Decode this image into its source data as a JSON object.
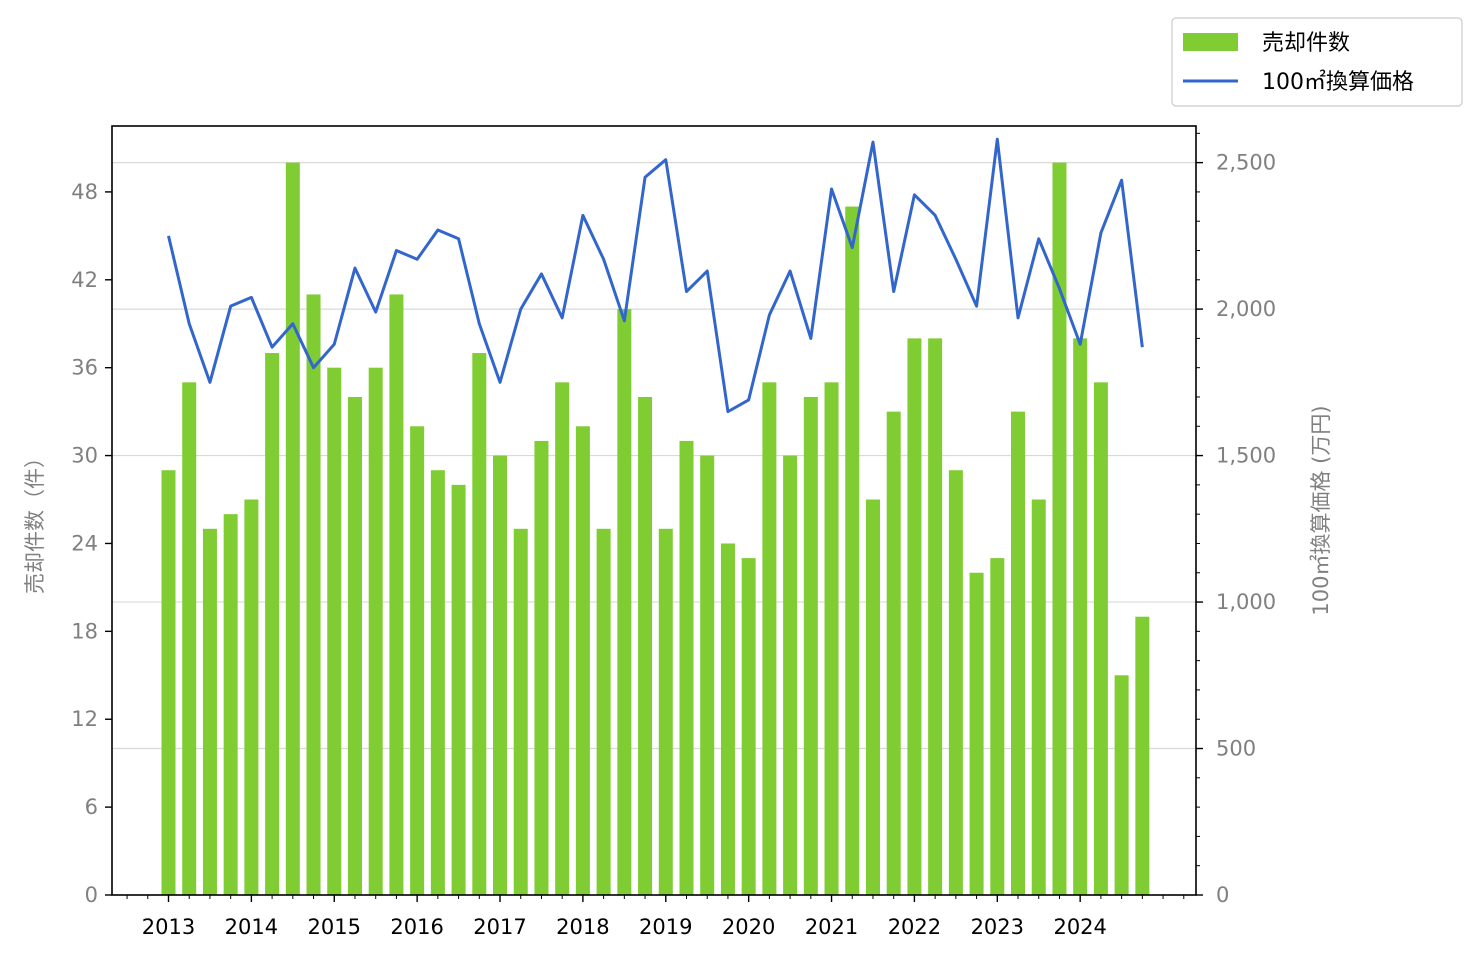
{
  "chart_data": {
    "type": "bar+line",
    "x_labels": [
      "2013",
      "2014",
      "2015",
      "2016",
      "2017",
      "2018",
      "2019",
      "2020",
      "2021",
      "2022",
      "2023",
      "2024"
    ],
    "quarters": [
      "2013Q1",
      "2013Q2",
      "2013Q3",
      "2013Q4",
      "2014Q1",
      "2014Q2",
      "2014Q3",
      "2014Q4",
      "2015Q1",
      "2015Q2",
      "2015Q3",
      "2015Q4",
      "2016Q1",
      "2016Q2",
      "2016Q3",
      "2016Q4",
      "2017Q1",
      "2017Q2",
      "2017Q3",
      "2017Q4",
      "2018Q1",
      "2018Q2",
      "2018Q3",
      "2018Q4",
      "2019Q1",
      "2019Q2",
      "2019Q3",
      "2019Q4",
      "2020Q1",
      "2020Q2",
      "2020Q3",
      "2020Q4",
      "2021Q1",
      "2021Q2",
      "2021Q3",
      "2021Q4",
      "2022Q1",
      "2022Q2",
      "2022Q3",
      "2022Q4",
      "2023Q1",
      "2023Q2",
      "2023Q3",
      "2023Q4",
      "2024Q1",
      "2024Q2",
      "2024Q3",
      "2024Q4"
    ],
    "series": [
      {
        "name": "売却件数",
        "type": "bar",
        "axis": "left",
        "color": "#7fcc33",
        "values": [
          29,
          35,
          25,
          26,
          27,
          37,
          50,
          41,
          36,
          34,
          36,
          41,
          32,
          29,
          28,
          37,
          30,
          25,
          31,
          35,
          32,
          25,
          40,
          34,
          25,
          31,
          30,
          24,
          23,
          35,
          30,
          34,
          35,
          47,
          27,
          33,
          38,
          38,
          29,
          22,
          23,
          33,
          27,
          50,
          38,
          35,
          15,
          19
        ]
      },
      {
        "name": "100㎡換算価格",
        "type": "line",
        "axis": "right",
        "color": "#3366cc",
        "values": [
          2250,
          1950,
          1750,
          2010,
          2040,
          1870,
          1950,
          1800,
          1880,
          2140,
          1990,
          2200,
          2170,
          2270,
          2240,
          1950,
          1750,
          2000,
          2120,
          1970,
          2320,
          2170,
          1960,
          2450,
          2510,
          2060,
          2130,
          1650,
          1690,
          1980,
          2130,
          1900,
          2410,
          2210,
          2570,
          2060,
          2390,
          2320,
          2170,
          2010,
          2580,
          1970,
          2240,
          2070,
          1880,
          2260,
          2440,
          1870
        ]
      }
    ],
    "y_left": {
      "label": "売却件数（件）",
      "ylim": [
        0,
        52.5
      ],
      "ticks": [
        "0",
        "6",
        "12",
        "18",
        "24",
        "30",
        "36",
        "42",
        "48"
      ]
    },
    "y_right": {
      "label": "100㎡換算価格 (万円)",
      "ylim": [
        0,
        2625
      ],
      "ticks": [
        "0",
        "500",
        "1,000",
        "1,500",
        "2,000",
        "2,500"
      ]
    },
    "grid": "horizontal, right axis",
    "legend": {
      "placement": "top-right, outside plot",
      "entries": [
        "売却件数",
        "100㎡換算価格"
      ]
    }
  }
}
